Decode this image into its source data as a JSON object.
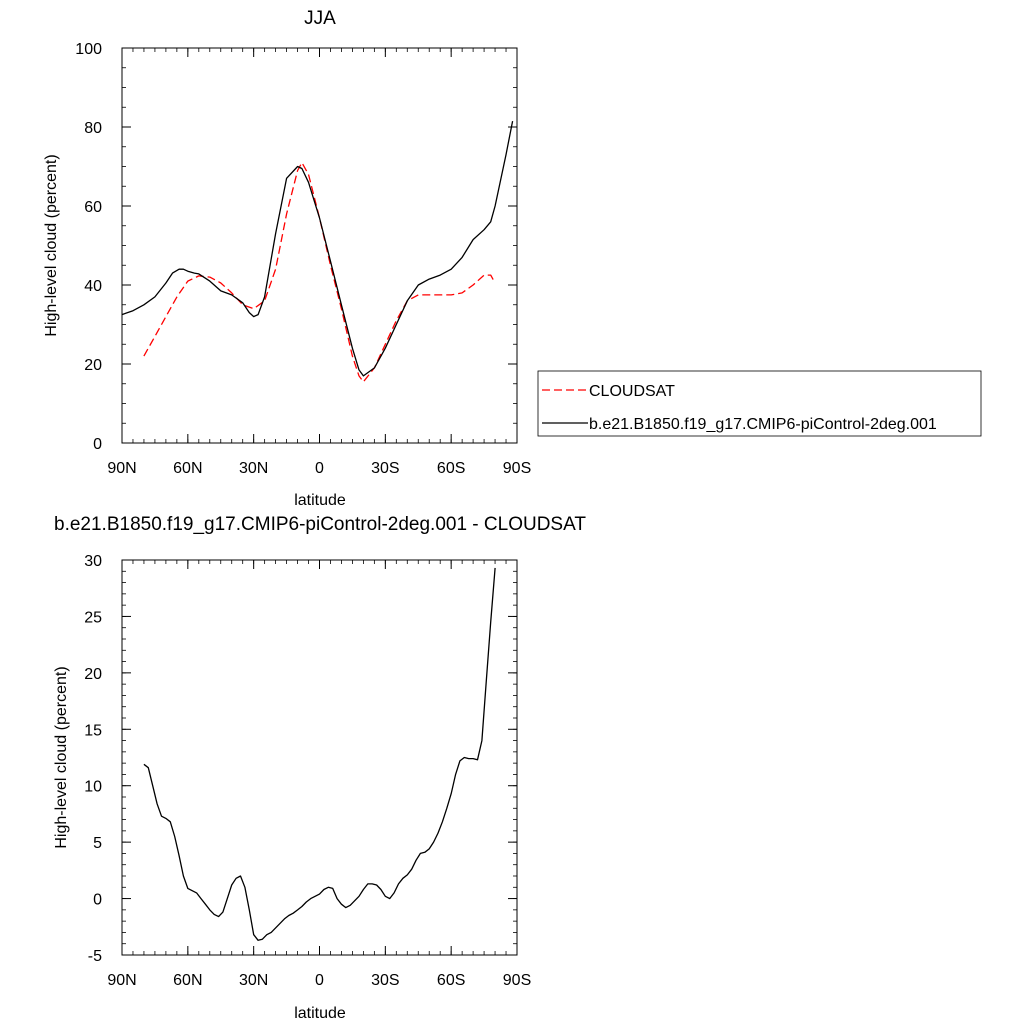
{
  "chart_data": [
    {
      "type": "line",
      "title": "JJA",
      "xlabel": "latitude",
      "ylabel": "High-level cloud (percent)",
      "xlim": [
        90,
        -90
      ],
      "ylim": [
        0,
        100
      ],
      "x_ticks": [
        90,
        60,
        30,
        0,
        -30,
        -60,
        -90
      ],
      "x_tick_labels": [
        "90N",
        "60N",
        "30N",
        "0",
        "30S",
        "60S",
        "90S"
      ],
      "y_ticks": [
        0,
        20,
        40,
        60,
        80,
        100
      ],
      "y_tick_labels": [
        "0",
        "20",
        "40",
        "60",
        "80",
        "100"
      ],
      "legend_position": "right",
      "series": [
        {
          "name": "CLOUDSAT",
          "style": "dashed",
          "color": "#ff0000",
          "x": [
            80,
            75,
            70,
            65,
            60,
            55,
            50,
            45,
            40,
            35,
            30,
            25,
            20,
            15,
            10,
            8,
            5,
            0,
            -5,
            -10,
            -15,
            -18,
            -20,
            -25,
            -30,
            -35,
            -40,
            -45,
            -50,
            -55,
            -60,
            -65,
            -70,
            -75,
            -78,
            -80
          ],
          "y": [
            22,
            27,
            32,
            37,
            41,
            42.3,
            42,
            40.5,
            38,
            35,
            34,
            36,
            44,
            58,
            69,
            71,
            68,
            57,
            45,
            34,
            22,
            17,
            15.5,
            19,
            25,
            31,
            36,
            37.5,
            37.5,
            37.5,
            37.5,
            38,
            40,
            42.5,
            42.5,
            40.5
          ]
        },
        {
          "name": "b.e21.B1850.f19_g17.CMIP6-piControl-2deg.001",
          "style": "solid",
          "color": "#000000",
          "x": [
            90,
            85,
            80,
            75,
            70,
            67,
            64,
            62,
            60,
            57,
            55,
            50,
            45,
            40,
            35,
            32,
            30,
            28,
            25,
            20,
            15,
            10,
            8,
            5,
            0,
            -5,
            -10,
            -15,
            -18,
            -20,
            -25,
            -30,
            -35,
            -40,
            -45,
            -50,
            -55,
            -60,
            -65,
            -70,
            -75,
            -78,
            -80,
            -85,
            -88
          ],
          "y": [
            32.5,
            33.5,
            35,
            37,
            40.5,
            43,
            44,
            44,
            43.5,
            43,
            42.8,
            41,
            38.5,
            37.5,
            35.5,
            33,
            32,
            32.5,
            37,
            53,
            67,
            70,
            69.5,
            66,
            57,
            46,
            35,
            24,
            18.5,
            17,
            19,
            24,
            30,
            36,
            40,
            41.5,
            42.5,
            44,
            47,
            51.5,
            54,
            56,
            60,
            73,
            81.5
          ]
        }
      ]
    },
    {
      "type": "line",
      "title": "b.e21.B1850.f19_g17.CMIP6-piControl-2deg.001 - CLOUDSAT",
      "xlabel": "latitude",
      "ylabel": "High-level cloud (percent)",
      "xlim": [
        90,
        -90
      ],
      "ylim": [
        -5,
        30
      ],
      "x_ticks": [
        90,
        60,
        30,
        0,
        -30,
        -60,
        -90
      ],
      "x_tick_labels": [
        "90N",
        "60N",
        "30N",
        "0",
        "30S",
        "60S",
        "90S"
      ],
      "y_ticks": [
        -5,
        0,
        5,
        10,
        15,
        20,
        25,
        30
      ],
      "y_tick_labels": [
        "-5",
        "0",
        "5",
        "10",
        "15",
        "20",
        "25",
        "30"
      ],
      "series": [
        {
          "style": "solid",
          "color": "#000000",
          "x": [
            80,
            78,
            76,
            74,
            72,
            70,
            68,
            66,
            64,
            62,
            60,
            58,
            56,
            54,
            52,
            50,
            48,
            46,
            44,
            42,
            40,
            38,
            36,
            34,
            32,
            30,
            28,
            26,
            24,
            22,
            20,
            18,
            16,
            14,
            12,
            10,
            8,
            6,
            4,
            2,
            0,
            -2,
            -4,
            -6,
            -8,
            -10,
            -12,
            -14,
            -16,
            -18,
            -20,
            -22,
            -24,
            -26,
            -28,
            -30,
            -32,
            -34,
            -36,
            -38,
            -40,
            -42,
            -44,
            -46,
            -48,
            -50,
            -52,
            -54,
            -56,
            -58,
            -60,
            -62,
            -64,
            -66,
            -68,
            -70,
            -72,
            -74,
            -76,
            -78,
            -80
          ],
          "y": [
            11.9,
            11.6,
            10,
            8.4,
            7.3,
            7.1,
            6.8,
            5.5,
            3.8,
            2,
            0.9,
            0.7,
            0.5,
            0,
            -0.5,
            -1,
            -1.4,
            -1.6,
            -1.2,
            0,
            1.2,
            1.8,
            2,
            1,
            -1,
            -3.2,
            -3.7,
            -3.6,
            -3.2,
            -3,
            -2.6,
            -2.2,
            -1.8,
            -1.5,
            -1.3,
            -1,
            -0.7,
            -0.3,
            0,
            0.2,
            0.4,
            0.8,
            1,
            0.9,
            0,
            -0.5,
            -0.8,
            -0.6,
            -0.2,
            0.2,
            0.8,
            1.3,
            1.3,
            1.2,
            0.8,
            0.2,
            0,
            0.5,
            1.3,
            1.8,
            2.1,
            2.6,
            3.4,
            4,
            4.1,
            4.4,
            5,
            5.8,
            6.8,
            8,
            9.3,
            11,
            12.2,
            12.5,
            12.4,
            12.4,
            12.3,
            14,
            19.3,
            24.5,
            29.3
          ]
        }
      ]
    }
  ]
}
